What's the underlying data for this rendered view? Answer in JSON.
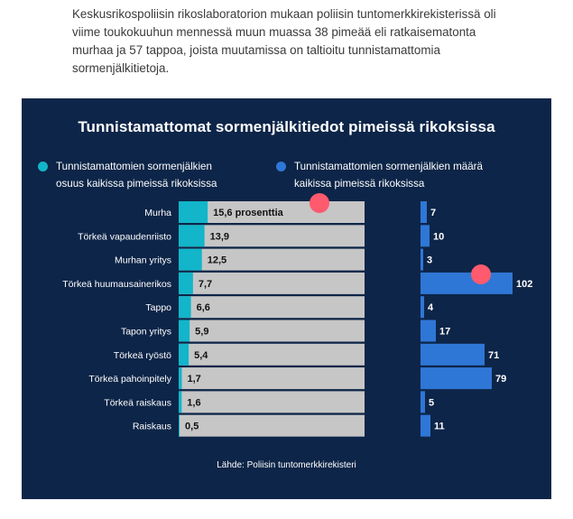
{
  "intro_text": "Keskusrikospoliisin rikoslaboratorion mukaan poliisin tuntomerkkirekisterissä oli viime toukokuuhun mennessä muun muassa 38 pimeää eli ratkaisematonta murhaa ja 57 tappoa, joista muutamissa on taltioitu tunnistamattomia sormenjälkitietoja.",
  "colors": {
    "panel_bg": "#0d2548",
    "share_bar": "#12b5c9",
    "share_track": "#c6c6c6",
    "count_bar": "#2f77d6",
    "marker": "#ff5a6e"
  },
  "chart_data": {
    "type": "bar",
    "title": "Tunnistamattomat sormenjälkitiedot pimeissä rikoksissa",
    "source": "Lähde: Poliisin tuntomerkkirekisteri",
    "categories": [
      "Murha",
      "Törkeä vapaudenriisto",
      "Murhan yritys",
      "Törkeä huumausainerikos",
      "Tappo",
      "Tapon yritys",
      "Törkeä ryöstö",
      "Törkeä pahoinpitely",
      "Törkeä raiskaus",
      "Raiskaus"
    ],
    "series": [
      {
        "name": "Tunnistamattomien sormenjälkien osuus kaikissa pimeissä rikoksissa",
        "values": [
          15.6,
          13.9,
          12.5,
          7.7,
          6.6,
          5.9,
          5.4,
          1.7,
          1.6,
          0.5
        ],
        "labels": [
          "15,6 prosenttia",
          "13,9",
          "12,5",
          "7,7",
          "6,6",
          "5,9",
          "5,4",
          "1,7",
          "1,6",
          "0,5"
        ],
        "xlim": [
          0,
          100
        ]
      },
      {
        "name": "Tunnistamattomien sormenjälkien määrä kaikissa pimeissä rikoksissa",
        "values": [
          7,
          10,
          3,
          102,
          4,
          17,
          71,
          79,
          5,
          11
        ],
        "labels": [
          "7",
          "10",
          "3",
          "102",
          "4",
          "17",
          "71",
          "79",
          "5",
          "11"
        ]
      }
    ]
  }
}
